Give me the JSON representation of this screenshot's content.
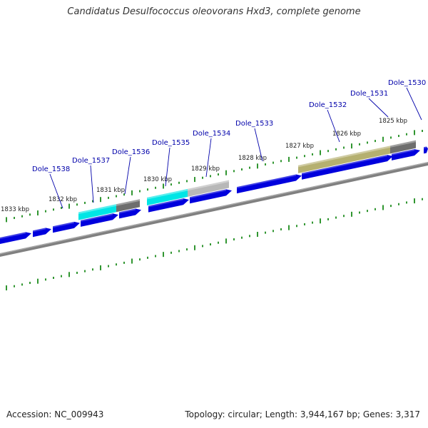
{
  "title": "Candidatus Desulfococcus oleovorans Hxd3, complete genome",
  "footer": {
    "accession": "Accession: NC_009943",
    "summary": "Topology: circular; Length: 3,944,167 bp; Genes: 3,317"
  },
  "colors": {
    "forward_cds": "#0000dd",
    "backbone": "#808080",
    "tick": "#1a8a1a",
    "label": "#0000aa",
    "tick_label": "#222222",
    "cyan_feature": "#00e5e5",
    "gray_feature": "#6e6e6e",
    "lightgray_feature": "#b8b8b8",
    "olive_feature": "#b5b070"
  },
  "scale": {
    "unit": "kbp",
    "ticks": [
      {
        "kbp": 1833,
        "label": "1833 kbp"
      },
      {
        "kbp": 1832,
        "label": "1832 kbp"
      },
      {
        "kbp": 1831,
        "label": "1831 kbp"
      },
      {
        "kbp": 1830,
        "label": "1830 kbp"
      },
      {
        "kbp": 1829,
        "label": "1829 kbp"
      },
      {
        "kbp": 1828,
        "label": "1828 kbp"
      },
      {
        "kbp": 1827,
        "label": "1827 kbp"
      },
      {
        "kbp": 1826,
        "label": "1826 kbp"
      },
      {
        "kbp": 1825,
        "label": "1825 kbp"
      }
    ]
  },
  "gene_labels": [
    {
      "name": "Dole_1538"
    },
    {
      "name": "Dole_1537"
    },
    {
      "name": "Dole_1536"
    },
    {
      "name": "Dole_1535"
    },
    {
      "name": "Dole_1534"
    },
    {
      "name": "Dole_1533"
    },
    {
      "name": "Dole_1532"
    },
    {
      "name": "Dole_1531"
    },
    {
      "name": "Dole_1530"
    }
  ]
}
